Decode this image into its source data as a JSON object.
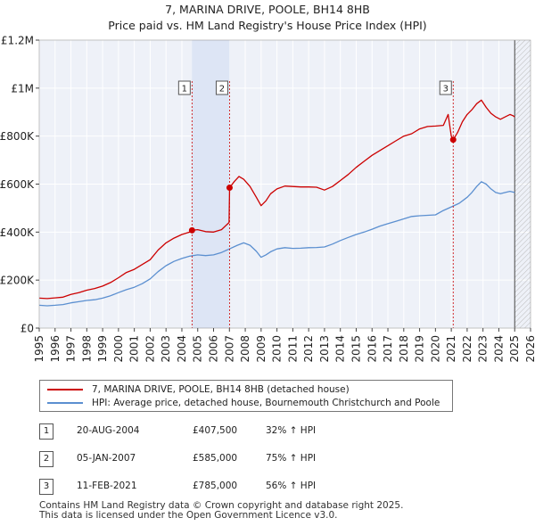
{
  "title_line1": "7, MARINA DRIVE, POOLE, BH14 8HB",
  "title_line2": "Price paid vs. HM Land Registry's House Price Index (HPI)",
  "chart_data": {
    "type": "line",
    "xlim": [
      1995,
      2026
    ],
    "ylim": [
      0,
      1200000
    ],
    "y_ticks": [
      {
        "value": 0,
        "label": "£0"
      },
      {
        "value": 200000,
        "label": "£200K"
      },
      {
        "value": 400000,
        "label": "£400K"
      },
      {
        "value": 600000,
        "label": "£600K"
      },
      {
        "value": 800000,
        "label": "£800K"
      },
      {
        "value": 1000000,
        "label": "£1M"
      },
      {
        "value": 1200000,
        "label": "£1.2M"
      }
    ],
    "x_ticks": [
      "1995",
      "1996",
      "1997",
      "1998",
      "1999",
      "2000",
      "2001",
      "2002",
      "2003",
      "2004",
      "2005",
      "2006",
      "2007",
      "2008",
      "2009",
      "2010",
      "2011",
      "2012",
      "2013",
      "2014",
      "2015",
      "2016",
      "2017",
      "2018",
      "2019",
      "2020",
      "2021",
      "2022",
      "2023",
      "2024",
      "2025",
      "2026"
    ],
    "shaded_periods": [
      [
        2004.64,
        2007.01
      ]
    ],
    "hatched_after": 2025.0,
    "series": [
      {
        "name": "7, MARINA DRIVE, POOLE, BH14 8HB (detached house)",
        "color": "#cc0000",
        "x": [
          1995.0,
          1995.5,
          1996.0,
          1996.5,
          1997.0,
          1997.5,
          1998.0,
          1998.5,
          1999.0,
          1999.5,
          2000.0,
          2000.5,
          2001.0,
          2001.5,
          2002.0,
          2002.5,
          2003.0,
          2003.5,
          2004.0,
          2004.5,
          2004.64,
          2005.0,
          2005.5,
          2006.0,
          2006.5,
          2006.98,
          2007.01,
          2007.3,
          2007.6,
          2007.9,
          2008.3,
          2008.7,
          2009.0,
          2009.3,
          2009.6,
          2010.0,
          2010.5,
          2011.0,
          2011.5,
          2012.0,
          2012.5,
          2013.0,
          2013.5,
          2014.0,
          2014.5,
          2015.0,
          2015.5,
          2016.0,
          2016.5,
          2017.0,
          2017.5,
          2018.0,
          2018.5,
          2019.0,
          2019.5,
          2020.0,
          2020.5,
          2020.8,
          2021.0,
          2021.12,
          2021.4,
          2021.7,
          2022.0,
          2022.3,
          2022.6,
          2022.9,
          2023.2,
          2023.5,
          2023.8,
          2024.1,
          2024.4,
          2024.7,
          2024.9,
          2025.0
        ],
        "values": [
          125000,
          123000,
          126000,
          129000,
          140000,
          148000,
          158000,
          165000,
          175000,
          190000,
          210000,
          232000,
          245000,
          265000,
          285000,
          325000,
          355000,
          375000,
          390000,
          400000,
          407500,
          410000,
          402000,
          400000,
          410000,
          440000,
          585000,
          610000,
          632000,
          620000,
          590000,
          545000,
          510000,
          530000,
          560000,
          580000,
          592000,
          590000,
          588000,
          588000,
          587000,
          575000,
          590000,
          615000,
          640000,
          670000,
          695000,
          720000,
          740000,
          760000,
          780000,
          800000,
          810000,
          830000,
          840000,
          842000,
          845000,
          890000,
          800000,
          785000,
          815000,
          860000,
          890000,
          910000,
          935000,
          950000,
          920000,
          895000,
          880000,
          870000,
          880000,
          890000,
          885000,
          880000
        ]
      },
      {
        "name": "HPI: Average price, detached house, Bournemouth Christchurch and Poole",
        "color": "#5b8fd0",
        "x": [
          1995.0,
          1995.5,
          1996.0,
          1996.5,
          1997.0,
          1997.5,
          1998.0,
          1998.5,
          1999.0,
          1999.5,
          2000.0,
          2000.5,
          2001.0,
          2001.5,
          2002.0,
          2002.5,
          2003.0,
          2003.5,
          2004.0,
          2004.5,
          2005.0,
          2005.5,
          2006.0,
          2006.5,
          2007.0,
          2007.5,
          2007.9,
          2008.3,
          2008.7,
          2009.0,
          2009.3,
          2009.6,
          2010.0,
          2010.5,
          2011.0,
          2011.5,
          2012.0,
          2012.5,
          2013.0,
          2013.5,
          2014.0,
          2014.5,
          2015.0,
          2015.5,
          2016.0,
          2016.5,
          2017.0,
          2017.5,
          2018.0,
          2018.5,
          2019.0,
          2019.5,
          2020.0,
          2020.5,
          2021.0,
          2021.5,
          2022.0,
          2022.3,
          2022.6,
          2022.9,
          2023.2,
          2023.5,
          2023.8,
          2024.1,
          2024.4,
          2024.7,
          2025.0
        ],
        "values": [
          95000,
          93000,
          95000,
          98000,
          105000,
          110000,
          115000,
          118000,
          125000,
          135000,
          148000,
          160000,
          170000,
          185000,
          205000,
          235000,
          260000,
          278000,
          290000,
          300000,
          305000,
          302000,
          305000,
          315000,
          330000,
          345000,
          355000,
          345000,
          320000,
          295000,
          305000,
          318000,
          330000,
          335000,
          332000,
          333000,
          335000,
          336000,
          338000,
          350000,
          365000,
          378000,
          390000,
          400000,
          412000,
          425000,
          435000,
          445000,
          455000,
          465000,
          468000,
          470000,
          472000,
          490000,
          505000,
          520000,
          545000,
          565000,
          590000,
          610000,
          600000,
          580000,
          565000,
          560000,
          565000,
          570000,
          565000
        ]
      }
    ],
    "markers": [
      {
        "label": "1",
        "x": 2004.64,
        "y": 407500
      },
      {
        "label": "2",
        "x": 2007.01,
        "y": 585000
      },
      {
        "label": "3",
        "x": 2021.12,
        "y": 785000
      }
    ]
  },
  "legend": [
    {
      "label": "7, MARINA DRIVE, POOLE, BH14 8HB (detached house)",
      "color": "#cc0000"
    },
    {
      "label": "HPI: Average price, detached house, Bournemouth Christchurch and Poole",
      "color": "#5b8fd0"
    }
  ],
  "transactions": [
    {
      "num": "1",
      "date": "20-AUG-2004",
      "price": "£407,500",
      "hpi": "32% ↑ HPI"
    },
    {
      "num": "2",
      "date": "05-JAN-2007",
      "price": "£585,000",
      "hpi": "75% ↑ HPI"
    },
    {
      "num": "3",
      "date": "11-FEB-2021",
      "price": "£785,000",
      "hpi": "56% ↑ HPI"
    }
  ],
  "footer_line1": "Contains HM Land Registry data © Crown copyright and database right 2025.",
  "footer_line2": "This data is licensed under the Open Government Licence v3.0."
}
